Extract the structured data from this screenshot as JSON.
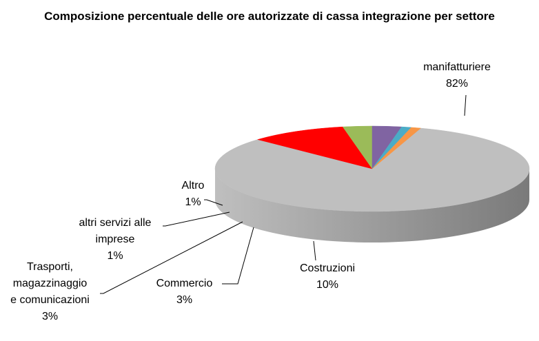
{
  "chart_data": {
    "type": "pie",
    "title": "Composizione percentuale delle ore autorizzate di cassa integrazione per settore",
    "slices": [
      {
        "key": "manif",
        "label": "manifatturiere",
        "value": 82,
        "value_label": "82%",
        "color": "#bfbfbf",
        "side": "#7a7a7a"
      },
      {
        "key": "costr",
        "label": "Costruzioni",
        "value": 10,
        "value_label": "10%",
        "color": "#ff0000",
        "side": "#c00000"
      },
      {
        "key": "comm",
        "label": "Commercio",
        "value": 3,
        "value_label": "3%",
        "color": "#9bbb59",
        "side": "#6d8a3a"
      },
      {
        "key": "trasp",
        "label": "Trasporti, magazzinaggio e comunicazioni",
        "label_lines": [
          "Trasporti,",
          "magazzinaggio",
          "e comunicazioni"
        ],
        "value": 3,
        "value_label": "3%",
        "color": "#8064a2",
        "side": "#5b4679"
      },
      {
        "key": "altri",
        "label": "altri servizi alle imprese",
        "label_lines": [
          "altri servizi alle",
          "imprese"
        ],
        "value": 1,
        "value_label": "1%",
        "color": "#4bacc6",
        "side": "#2f7f96"
      },
      {
        "key": "altro",
        "label": "Altro",
        "value": 1,
        "value_label": "1%",
        "color": "#f79646",
        "side": "#c0702f"
      }
    ]
  }
}
